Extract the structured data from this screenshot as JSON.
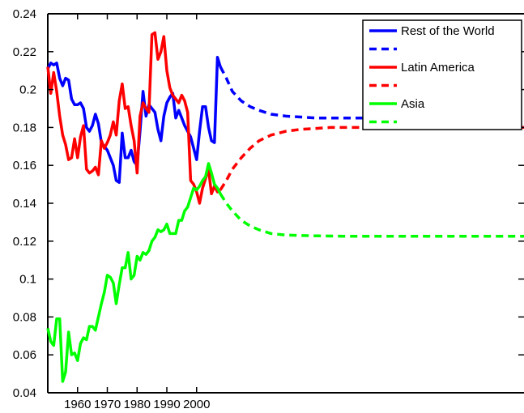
{
  "chart_data": {
    "type": "line",
    "title": "",
    "xlabel": "",
    "ylabel": "",
    "xlim": [
      1950,
      2110
    ],
    "ylim": [
      0.04,
      0.24
    ],
    "x_ticks": [
      1960,
      1970,
      1980,
      1990,
      2000
    ],
    "x_tick_labels": [
      "1960",
      "1970",
      "1980",
      "1990",
      "2000"
    ],
    "y_ticks": [
      0.04,
      0.06,
      0.08,
      0.1,
      0.12,
      0.14,
      0.16,
      0.18,
      0.2,
      0.22,
      0.24
    ],
    "y_tick_labels": [
      "0.04",
      "0.06",
      "0.08",
      "0.1",
      "0.12",
      "0.14",
      "0.16",
      "0.18",
      "0.2",
      "0.22",
      "0.24"
    ],
    "grid": false,
    "legend_position": "top-right",
    "legend": [
      {
        "label": "Rest of the World",
        "color": "#0000ff",
        "style": "solid"
      },
      {
        "label": "",
        "color": "#0000ff",
        "style": "dashed"
      },
      {
        "label": "Latin America",
        "color": "#ff0000",
        "style": "solid"
      },
      {
        "label": "",
        "color": "#ff0000",
        "style": "dashed"
      },
      {
        "label": "Asia",
        "color": "#00ff00",
        "style": "solid"
      },
      {
        "label": "",
        "color": "#00ff00",
        "style": "dashed"
      }
    ],
    "series": [
      {
        "color": "#0000ff",
        "style": "solid",
        "x": [
          1950,
          1951,
          1952,
          1953,
          1954,
          1955,
          1956,
          1957,
          1958,
          1959,
          1960,
          1961,
          1962,
          1963,
          1964,
          1965,
          1966,
          1967,
          1968,
          1969,
          1970,
          1971,
          1972,
          1973,
          1974,
          1975,
          1976,
          1977,
          1978,
          1979,
          1980,
          1981,
          1982,
          1983,
          1984,
          1985,
          1986,
          1987,
          1988,
          1989,
          1990,
          1991,
          1992,
          1993,
          1994,
          1995,
          1996,
          1997,
          1998,
          1999,
          2000,
          2001,
          2002,
          2003,
          2004,
          2005,
          2006,
          2007,
          2008
        ],
        "y": [
          0.211,
          0.214,
          0.213,
          0.214,
          0.206,
          0.202,
          0.206,
          0.205,
          0.195,
          0.192,
          0.192,
          0.193,
          0.19,
          0.18,
          0.178,
          0.181,
          0.187,
          0.182,
          0.172,
          0.17,
          0.168,
          0.164,
          0.16,
          0.152,
          0.151,
          0.177,
          0.164,
          0.164,
          0.168,
          0.162,
          0.16,
          0.178,
          0.199,
          0.186,
          0.192,
          0.19,
          0.188,
          0.179,
          0.173,
          0.186,
          0.193,
          0.196,
          0.198,
          0.185,
          0.189,
          0.185,
          0.181,
          0.178,
          0.175,
          0.169,
          0.163,
          0.178,
          0.191,
          0.191,
          0.18,
          0.173,
          0.172,
          0.217,
          0.212
        ]
      },
      {
        "color": "#0000ff",
        "style": "dashed",
        "x": [
          2008,
          2010,
          2012,
          2015,
          2018,
          2021,
          2025,
          2030,
          2035,
          2040,
          2045,
          2050,
          2055,
          2060,
          2065,
          2070,
          2075,
          2080,
          2085,
          2090,
          2095,
          2100,
          2105,
          2110
        ],
        "y": [
          0.212,
          0.206,
          0.199,
          0.194,
          0.191,
          0.189,
          0.187,
          0.186,
          0.1855,
          0.185,
          0.185,
          0.185,
          0.185,
          0.185,
          0.185,
          0.185,
          0.185,
          0.185,
          0.185,
          0.185,
          0.185,
          0.185,
          0.185,
          0.185
        ]
      },
      {
        "color": "#ff0000",
        "style": "solid",
        "x": [
          1950,
          1951,
          1952,
          1953,
          1954,
          1955,
          1956,
          1957,
          1958,
          1959,
          1960,
          1961,
          1962,
          1963,
          1964,
          1965,
          1966,
          1967,
          1968,
          1969,
          1970,
          1971,
          1972,
          1973,
          1974,
          1975,
          1976,
          1977,
          1978,
          1979,
          1980,
          1981,
          1982,
          1983,
          1984,
          1985,
          1986,
          1987,
          1988,
          1989,
          1990,
          1991,
          1992,
          1993,
          1994,
          1995,
          1996,
          1997,
          1998,
          1999,
          2000,
          2001,
          2002,
          2003,
          2004,
          2005,
          2006,
          2007,
          2008
        ],
        "y": [
          0.212,
          0.198,
          0.209,
          0.199,
          0.186,
          0.176,
          0.171,
          0.163,
          0.164,
          0.174,
          0.164,
          0.175,
          0.181,
          0.158,
          0.156,
          0.157,
          0.159,
          0.155,
          0.173,
          0.169,
          0.172,
          0.176,
          0.183,
          0.176,
          0.194,
          0.203,
          0.19,
          0.191,
          0.181,
          0.173,
          0.156,
          0.186,
          0.193,
          0.19,
          0.188,
          0.229,
          0.23,
          0.216,
          0.22,
          0.228,
          0.21,
          0.201,
          0.197,
          0.195,
          0.193,
          0.197,
          0.194,
          0.188,
          0.152,
          0.15,
          0.146,
          0.14,
          0.148,
          0.153,
          0.158,
          0.145,
          0.149,
          0.146,
          0.147
        ]
      },
      {
        "color": "#ff0000",
        "style": "dashed",
        "x": [
          2008,
          2010,
          2012,
          2015,
          2018,
          2021,
          2025,
          2030,
          2035,
          2040,
          2045,
          2050,
          2055,
          2060,
          2065,
          2070,
          2075,
          2080,
          2085,
          2090,
          2095,
          2100,
          2105,
          2110
        ],
        "y": [
          0.147,
          0.152,
          0.158,
          0.164,
          0.169,
          0.173,
          0.176,
          0.178,
          0.179,
          0.1795,
          0.18,
          0.18,
          0.18,
          0.18,
          0.18,
          0.18,
          0.18,
          0.18,
          0.18,
          0.18,
          0.18,
          0.18,
          0.18,
          0.18
        ]
      },
      {
        "color": "#00ff00",
        "style": "solid",
        "x": [
          1950,
          1951,
          1952,
          1953,
          1954,
          1955,
          1956,
          1957,
          1958,
          1959,
          1960,
          1961,
          1962,
          1963,
          1964,
          1965,
          1966,
          1967,
          1968,
          1969,
          1970,
          1971,
          1972,
          1973,
          1974,
          1975,
          1976,
          1977,
          1978,
          1979,
          1980,
          1981,
          1982,
          1983,
          1984,
          1985,
          1986,
          1987,
          1988,
          1989,
          1990,
          1991,
          1992,
          1993,
          1994,
          1995,
          1996,
          1997,
          1998,
          1999,
          2000,
          2001,
          2002,
          2003,
          2004,
          2005,
          2006,
          2007,
          2008
        ],
        "y": [
          0.074,
          0.067,
          0.065,
          0.079,
          0.079,
          0.046,
          0.051,
          0.072,
          0.06,
          0.061,
          0.057,
          0.066,
          0.069,
          0.068,
          0.075,
          0.075,
          0.073,
          0.08,
          0.087,
          0.093,
          0.102,
          0.101,
          0.098,
          0.087,
          0.097,
          0.106,
          0.106,
          0.114,
          0.1,
          0.102,
          0.112,
          0.11,
          0.114,
          0.113,
          0.115,
          0.12,
          0.122,
          0.126,
          0.125,
          0.126,
          0.129,
          0.124,
          0.124,
          0.124,
          0.131,
          0.131,
          0.136,
          0.138,
          0.143,
          0.148,
          0.147,
          0.149,
          0.152,
          0.154,
          0.161,
          0.156,
          0.15,
          0.148,
          0.145
        ]
      },
      {
        "color": "#00ff00",
        "style": "dashed",
        "x": [
          2008,
          2010,
          2012,
          2015,
          2018,
          2021,
          2025,
          2030,
          2035,
          2040,
          2045,
          2050,
          2055,
          2060,
          2065,
          2070,
          2075,
          2080,
          2085,
          2090,
          2095,
          2100,
          2105,
          2110
        ],
        "y": [
          0.145,
          0.14,
          0.136,
          0.131,
          0.128,
          0.126,
          0.124,
          0.1232,
          0.123,
          0.1228,
          0.1227,
          0.1226,
          0.1226,
          0.1226,
          0.1226,
          0.1226,
          0.1226,
          0.1226,
          0.1226,
          0.1226,
          0.1226,
          0.1226,
          0.1226,
          0.1226
        ]
      }
    ]
  }
}
